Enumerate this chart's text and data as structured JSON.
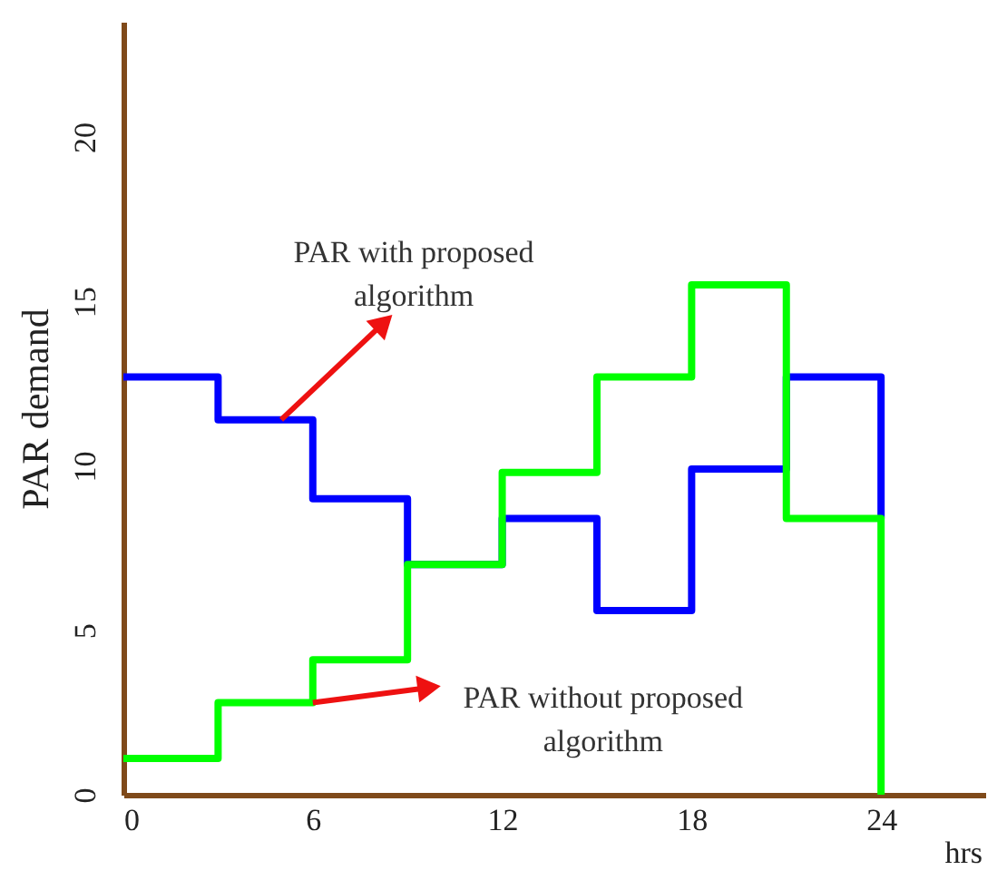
{
  "chart_data": {
    "type": "step",
    "xlabel": "hrs",
    "ylabel": "PAR demand",
    "xlim": [
      0,
      27.3
    ],
    "xticks": [
      0,
      6,
      12,
      18,
      24
    ],
    "ylim": [
      0,
      23.5
    ],
    "yticks": [
      0,
      5,
      10,
      15,
      20
    ],
    "grid": false,
    "marker": "none",
    "line_style": "solid",
    "series": [
      {
        "color": "#0000ff",
        "x": [
          0,
          3,
          6,
          9,
          12,
          15,
          18,
          21,
          24,
          24
        ],
        "values": [
          12.7,
          11.4,
          9.0,
          7.0,
          8.4,
          5.6,
          9.9,
          12.7,
          12.7,
          8.4
        ]
      },
      {
        "color": "#00ff00",
        "x": [
          0,
          3,
          6,
          9,
          12,
          15,
          18,
          21,
          24,
          24
        ],
        "values": [
          1.1,
          2.8,
          4.1,
          7.0,
          9.8,
          12.7,
          15.5,
          8.4,
          8.4,
          0
        ]
      }
    ],
    "annotations": [
      {
        "text": "PAR with proposed\nalgorithm",
        "x": 5,
        "y": 11.4
      },
      {
        "text": "PAR without proposed\nalgorithm",
        "x": 6,
        "y": 2.8
      }
    ]
  }
}
